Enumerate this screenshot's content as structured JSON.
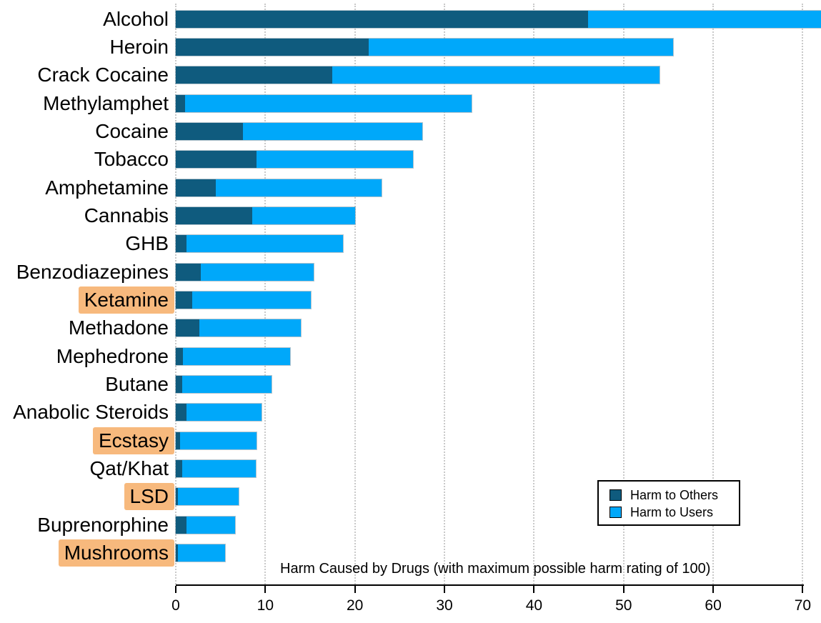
{
  "page": {
    "background": "#ffffff"
  },
  "chart_data": {
    "type": "bar",
    "orientation": "horizontal",
    "stacked": true,
    "title": "Harm Caused by Drugs (with maximum possible harm rating of 100)",
    "categories": [
      "Alcohol",
      "Heroin",
      "Crack Cocaine",
      "Methylamphet",
      "Cocaine",
      "Tobacco",
      "Amphetamine",
      "Cannabis",
      "GHB",
      "Benzodiazepines",
      "Ketamine",
      "Methadone",
      "Mephedrone",
      "Butane",
      "Anabolic Steroids",
      "Ecstasy",
      "Qat/Khat",
      "LSD",
      "Buprenorphine",
      "Mushrooms"
    ],
    "highlighted_categories": [
      "Ketamine",
      "Ecstasy",
      "LSD",
      "Mushrooms"
    ],
    "highlight_color": "#f7b97d",
    "series": [
      {
        "name": "Harm to Others",
        "color": "#0f5b7e",
        "values": [
          46,
          21.5,
          17.5,
          1,
          7.5,
          9,
          4.5,
          8.5,
          1.2,
          2.8,
          1.8,
          2.6,
          0.8,
          0.7,
          1.2,
          0.5,
          0.7,
          0.2,
          1.2,
          0.2
        ]
      },
      {
        "name": "Harm to Users",
        "color": "#00a8fa",
        "values": [
          26,
          34,
          36.5,
          32,
          20,
          17.5,
          18.5,
          11.5,
          17.5,
          12.6,
          13.3,
          11.4,
          12,
          10,
          8.4,
          8.5,
          8.2,
          6.8,
          5.4,
          5.3
        ]
      }
    ],
    "totals": [
      72,
      55.5,
      54,
      33,
      27.5,
      26.5,
      23,
      20,
      18.7,
      15.4,
      15.1,
      14,
      12.8,
      10.7,
      9.6,
      9,
      8.9,
      7,
      6.6,
      5.5
    ],
    "xlim": [
      0,
      70
    ],
    "xticks": [
      0,
      10,
      20,
      30,
      40,
      50,
      60,
      70
    ],
    "grid": "vertical-dotted",
    "legend": {
      "position": "lower-right",
      "entries": [
        "Harm to Others",
        "Harm to Users"
      ]
    }
  }
}
